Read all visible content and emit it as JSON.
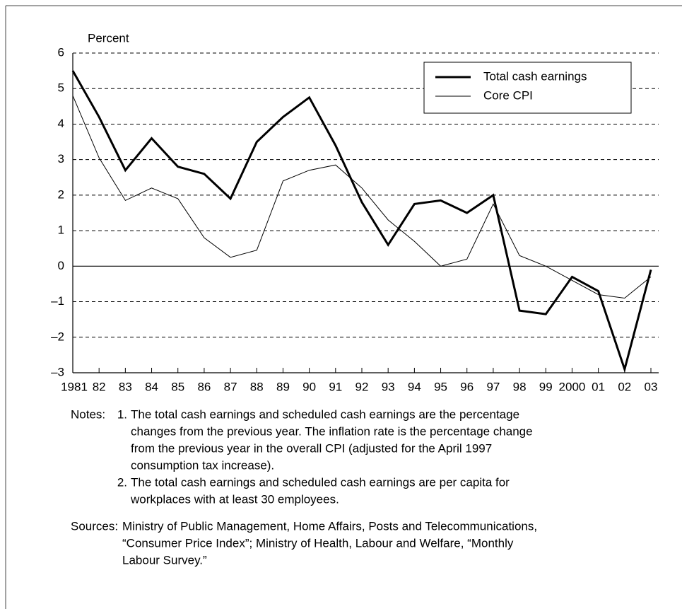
{
  "chart_data": {
    "type": "line",
    "y_label": "Percent",
    "categories": [
      "1981",
      "82",
      "83",
      "84",
      "85",
      "86",
      "87",
      "88",
      "89",
      "90",
      "91",
      "92",
      "93",
      "94",
      "95",
      "96",
      "97",
      "98",
      "99",
      "2000",
      "01",
      "02",
      "03"
    ],
    "series": [
      {
        "name": "Total cash earnings",
        "color": "#000000",
        "width": 3,
        "values": [
          5.5,
          4.2,
          2.7,
          3.6,
          2.8,
          2.6,
          1.9,
          3.5,
          4.2,
          4.75,
          3.4,
          1.8,
          0.6,
          1.75,
          1.85,
          1.5,
          2.0,
          -1.25,
          -1.35,
          -0.3,
          -0.7,
          -2.9,
          -0.1
        ]
      },
      {
        "name": "Core CPI",
        "color": "#000000",
        "width": 1,
        "values": [
          4.8,
          3.05,
          1.85,
          2.2,
          1.9,
          0.8,
          0.25,
          0.45,
          2.4,
          2.7,
          2.85,
          2.2,
          1.3,
          0.7,
          0.0,
          0.2,
          1.75,
          0.3,
          0.0,
          -0.4,
          -0.8,
          -0.9,
          -0.3
        ]
      }
    ],
    "ylim": [
      -3,
      6
    ],
    "yticks": [
      {
        "value": -3,
        "label": "–3"
      },
      {
        "value": -2,
        "label": "–2"
      },
      {
        "value": -1,
        "label": "–1"
      },
      0,
      1,
      2,
      3,
      4,
      5,
      6
    ],
    "grid": true,
    "legend": "upper right"
  },
  "notes": {
    "label": "Notes:",
    "items": [
      {
        "number": "1.",
        "lines": [
          "The total cash earnings and scheduled cash earnings are the percentage",
          "changes from the previous year. The inflation rate is the percentage change",
          "from the previous year in the overall CPI (adjusted for the April 1997",
          "consumption tax increase)."
        ]
      },
      {
        "number": "2.",
        "lines": [
          "The total cash earnings and scheduled cash earnings are per capita for",
          "workplaces with at least 30 employees."
        ]
      }
    ]
  },
  "sources": {
    "label": "Sources:",
    "lines": [
      "Ministry of Public Management, Home Affairs, Posts and Telecommunications,",
      "“Consumer Price Index”; Ministry of Health, Labour and Welfare, “Monthly",
      "Labour Survey.”"
    ]
  }
}
